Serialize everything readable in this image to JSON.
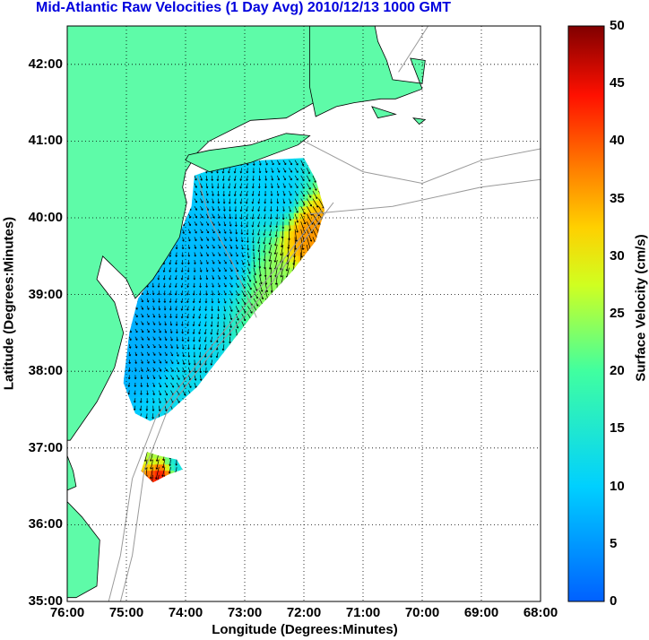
{
  "title": "Mid-Atlantic Raw Velocities (1 Day Avg) 2010/12/13 1000 GMT",
  "xlabel": "Longitude (Degrees:Minutes)",
  "ylabel": "Latitude (Degrees:Minutes)",
  "colorbar_label": "Surface Velocity (cm/s)",
  "chart_data": {
    "type": "map",
    "xlim": [
      -76,
      -68
    ],
    "ylim": [
      35,
      42.5
    ],
    "x_ticks": [
      {
        "value": -76,
        "label": "76:00"
      },
      {
        "value": -75,
        "label": "75:00"
      },
      {
        "value": -74,
        "label": "74:00"
      },
      {
        "value": -73,
        "label": "73:00"
      },
      {
        "value": -72,
        "label": "72:00"
      },
      {
        "value": -71,
        "label": "71:00"
      },
      {
        "value": -70,
        "label": "70:00"
      },
      {
        "value": -69,
        "label": "69:00"
      },
      {
        "value": -68,
        "label": "68:00"
      }
    ],
    "y_ticks": [
      {
        "value": 35,
        "label": "35:00"
      },
      {
        "value": 36,
        "label": "36:00"
      },
      {
        "value": 37,
        "label": "37:00"
      },
      {
        "value": 38,
        "label": "38:00"
      },
      {
        "value": 39,
        "label": "39:00"
      },
      {
        "value": 40,
        "label": "40:00"
      },
      {
        "value": 41,
        "label": "41:00"
      },
      {
        "value": 42,
        "label": "42:00"
      }
    ],
    "grid": true,
    "colorbar": {
      "range": [
        0,
        50
      ],
      "ticks": [
        "0",
        "5",
        "10",
        "15",
        "20",
        "25",
        "30",
        "35",
        "40",
        "45",
        "50"
      ],
      "colormap": "jet"
    },
    "land_color": "#5efba8",
    "coast_color": "#000000",
    "isobath_color": "#9a9a9a",
    "land_polygons": [
      [
        [
          -76,
          42.5
        ],
        [
          -71.9,
          42.5
        ],
        [
          -71.7,
          42.2
        ],
        [
          -71.3,
          41.8
        ],
        [
          -71.6,
          41.6
        ],
        [
          -72.3,
          41.3
        ],
        [
          -72.9,
          41.27
        ],
        [
          -73.6,
          41.0
        ],
        [
          -73.8,
          40.85
        ],
        [
          -74.0,
          40.6
        ],
        [
          -74.05,
          40.4
        ],
        [
          -73.98,
          40.2
        ],
        [
          -74.05,
          39.95
        ],
        [
          -74.1,
          39.75
        ],
        [
          -74.3,
          39.5
        ],
        [
          -74.55,
          39.2
        ],
        [
          -74.85,
          38.95
        ],
        [
          -75.0,
          39.2
        ],
        [
          -75.4,
          39.5
        ],
        [
          -75.5,
          39.2
        ],
        [
          -75.2,
          38.9
        ],
        [
          -75.05,
          38.5
        ],
        [
          -75.2,
          38.05
        ],
        [
          -75.5,
          37.6
        ],
        [
          -75.95,
          37.1
        ],
        [
          -76,
          37.1
        ]
      ],
      [
        [
          -74.0,
          40.75
        ],
        [
          -73.6,
          40.6
        ],
        [
          -72.9,
          40.72
        ],
        [
          -72.1,
          40.95
        ],
        [
          -71.9,
          41.07
        ],
        [
          -72.3,
          41.1
        ],
        [
          -72.9,
          40.95
        ],
        [
          -73.6,
          40.88
        ],
        [
          -73.95,
          40.82
        ]
      ],
      [
        [
          -71.9,
          42.5
        ],
        [
          -70.8,
          42.5
        ],
        [
          -70.75,
          42.3
        ],
        [
          -70.6,
          42.05
        ],
        [
          -70.5,
          41.8
        ],
        [
          -70.0,
          41.75
        ],
        [
          -69.95,
          42.05
        ],
        [
          -70.2,
          42.08
        ],
        [
          -70.0,
          41.68
        ],
        [
          -70.45,
          41.55
        ],
        [
          -70.7,
          41.55
        ],
        [
          -71.15,
          41.5
        ],
        [
          -71.45,
          41.45
        ],
        [
          -71.8,
          41.32
        ],
        [
          -71.9,
          41.7
        ]
      ],
      [
        [
          -70.85,
          41.45
        ],
        [
          -70.45,
          41.35
        ],
        [
          -70.75,
          41.3
        ]
      ],
      [
        [
          -70.15,
          41.3
        ],
        [
          -69.95,
          41.28
        ],
        [
          -70.05,
          41.22
        ]
      ],
      [
        [
          -75.75,
          36.1
        ],
        [
          -75.45,
          35.8
        ],
        [
          -75.5,
          35.2
        ],
        [
          -75.85,
          35.05
        ],
        [
          -76,
          35.05
        ],
        [
          -76,
          36.3
        ]
      ],
      [
        [
          -76,
          36.9
        ],
        [
          -75.9,
          36.7
        ],
        [
          -75.85,
          36.5
        ],
        [
          -76,
          36.45
        ]
      ]
    ],
    "isobaths": [
      [
        [
          -72.0,
          41.0
        ],
        [
          -71.0,
          40.6
        ],
        [
          -70.0,
          40.45
        ],
        [
          -69.0,
          40.75
        ],
        [
          -68.0,
          40.9
        ]
      ],
      [
        [
          -73.8,
          40.55
        ],
        [
          -73.6,
          40.0
        ],
        [
          -73.2,
          39.4
        ],
        [
          -73.0,
          39.05
        ],
        [
          -72.8,
          38.7
        ]
      ],
      [
        [
          -71.7,
          40.1
        ],
        [
          -72.3,
          39.5
        ],
        [
          -73.0,
          38.85
        ],
        [
          -73.8,
          38.1
        ],
        [
          -74.5,
          37.4
        ],
        [
          -74.9,
          36.6
        ],
        [
          -75.1,
          35.6
        ],
        [
          -75.3,
          35.0
        ]
      ],
      [
        [
          -71.5,
          40.2
        ],
        [
          -72.0,
          39.7
        ],
        [
          -72.8,
          38.9
        ],
        [
          -73.6,
          38.2
        ],
        [
          -74.3,
          37.5
        ],
        [
          -74.7,
          36.7
        ],
        [
          -74.9,
          35.6
        ],
        [
          -75.1,
          35.0
        ]
      ],
      [
        [
          -71.9,
          40.05
        ],
        [
          -70.5,
          40.15
        ],
        [
          -69.0,
          40.4
        ],
        [
          -68.0,
          40.5
        ]
      ],
      [
        [
          -70.4,
          41.9
        ],
        [
          -69.9,
          42.5
        ]
      ]
    ],
    "velocity_fields": [
      {
        "boundary": [
          [
            -75.05,
            37.85
          ],
          [
            -74.95,
            38.5
          ],
          [
            -74.8,
            38.95
          ],
          [
            -74.4,
            39.4
          ],
          [
            -74.1,
            39.8
          ],
          [
            -73.9,
            40.15
          ],
          [
            -73.85,
            40.55
          ],
          [
            -73.3,
            40.7
          ],
          [
            -72.7,
            40.75
          ],
          [
            -72.0,
            40.78
          ],
          [
            -71.8,
            40.5
          ],
          [
            -71.65,
            40.1
          ],
          [
            -71.8,
            39.7
          ],
          [
            -72.2,
            39.3
          ],
          [
            -72.8,
            38.8
          ],
          [
            -73.3,
            38.3
          ],
          [
            -73.8,
            37.8
          ],
          [
            -74.3,
            37.45
          ],
          [
            -74.6,
            37.35
          ],
          [
            -74.85,
            37.45
          ]
        ],
        "speed_stops": [
          {
            "lon": -74.7,
            "lat": 38.3,
            "speed": 7
          },
          {
            "lon": -73.5,
            "lat": 39.5,
            "speed": 8
          },
          {
            "lon": -72.5,
            "lat": 40.3,
            "speed": 10
          },
          {
            "lon": -72.4,
            "lat": 39.0,
            "speed": 24
          },
          {
            "lon": -71.9,
            "lat": 39.7,
            "speed": 36
          },
          {
            "lon": -74.0,
            "lat": 37.6,
            "speed": 12
          }
        ]
      },
      {
        "boundary": [
          [
            -74.65,
            36.95
          ],
          [
            -74.45,
            36.9
          ],
          [
            -74.15,
            36.85
          ],
          [
            -74.05,
            36.72
          ],
          [
            -74.3,
            36.65
          ],
          [
            -74.55,
            36.55
          ],
          [
            -74.75,
            36.7
          ]
        ],
        "speed_stops": [
          {
            "lon": -74.55,
            "lat": 36.9,
            "speed": 25
          },
          {
            "lon": -74.2,
            "lat": 36.75,
            "speed": 12
          },
          {
            "lon": -74.45,
            "lat": 36.6,
            "speed": 45
          }
        ]
      }
    ]
  }
}
